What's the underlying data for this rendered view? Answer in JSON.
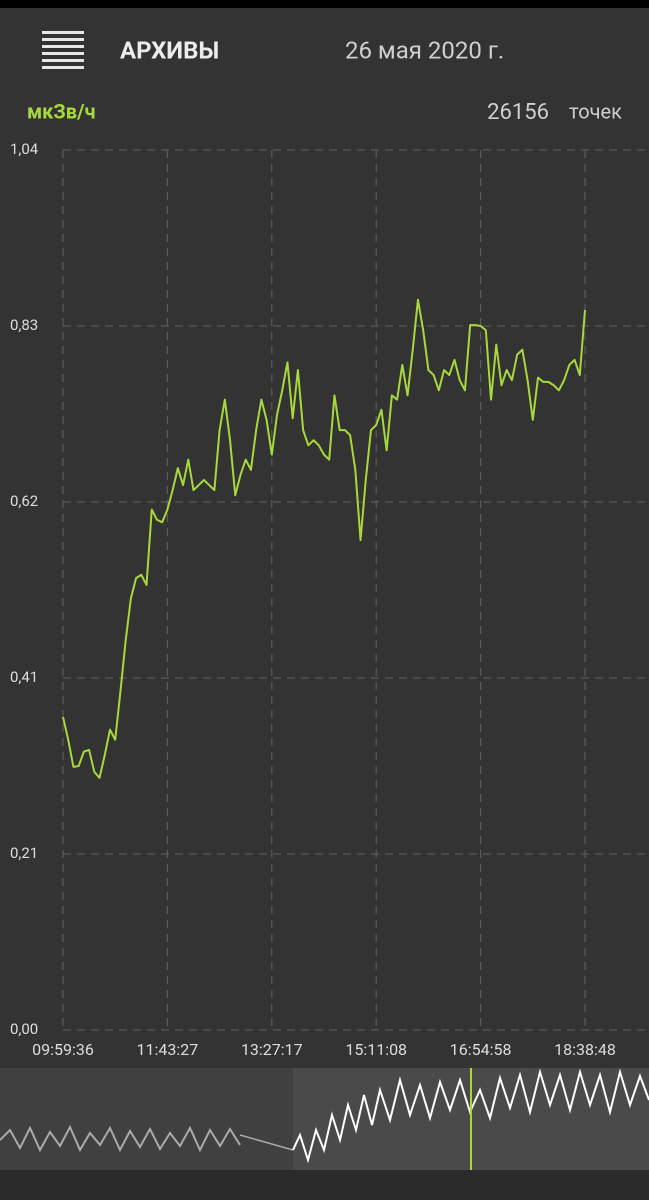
{
  "header": {
    "title": "АРХИВЫ",
    "date": "26 мая 2020 г."
  },
  "chart_data": {
    "type": "line",
    "y_unit": "мкЗв/ч",
    "point_count": 26156,
    "point_count_label": "точек",
    "color": "#a8d83c",
    "grid": true,
    "ylim": [
      0,
      1.04
    ],
    "yticks": [
      {
        "value": 0,
        "label": "0,00"
      },
      {
        "value": 0.208,
        "label": "0,21"
      },
      {
        "value": 0.416,
        "label": "0,41"
      },
      {
        "value": 0.624,
        "label": "0,62"
      },
      {
        "value": 0.832,
        "label": "0,83"
      },
      {
        "value": 1.04,
        "label": "1,04"
      }
    ],
    "categories": [
      "09:59:36",
      null,
      null,
      null,
      null,
      null,
      null,
      null,
      null,
      null,
      null,
      null,
      null,
      null,
      null,
      null,
      null,
      null,
      null,
      null,
      "11:43:27",
      null,
      null,
      null,
      null,
      null,
      null,
      null,
      null,
      null,
      null,
      null,
      null,
      null,
      null,
      null,
      null,
      null,
      null,
      null,
      "13:27:17",
      null,
      null,
      null,
      null,
      null,
      null,
      null,
      null,
      null,
      null,
      null,
      null,
      null,
      null,
      null,
      null,
      null,
      null,
      null,
      "15:11:08",
      null,
      null,
      null,
      null,
      null,
      null,
      null,
      null,
      null,
      null,
      null,
      null,
      null,
      null,
      null,
      null,
      null,
      null,
      null,
      "16:54:58",
      null,
      null,
      null,
      null,
      null,
      null,
      null,
      null,
      null,
      null,
      null,
      null,
      null,
      null,
      null,
      null,
      null,
      null,
      null,
      "18:38:48"
    ],
    "values": [
      0.37,
      0.343,
      0.311,
      0.312,
      0.329,
      0.331,
      0.305,
      0.298,
      0.325,
      0.355,
      0.343,
      0.4,
      0.46,
      0.51,
      0.534,
      0.538,
      0.526,
      0.615,
      0.603,
      0.6,
      0.615,
      0.638,
      0.664,
      0.644,
      0.674,
      0.638,
      0.644,
      0.65,
      0.644,
      0.638,
      0.709,
      0.745,
      0.697,
      0.632,
      0.656,
      0.674,
      0.662,
      0.709,
      0.745,
      0.721,
      0.68,
      0.727,
      0.756,
      0.789,
      0.723,
      0.78,
      0.709,
      0.691,
      0.697,
      0.691,
      0.68,
      0.674,
      0.75,
      0.709,
      0.709,
      0.703,
      0.662,
      0.579,
      0.65,
      0.709,
      0.715,
      0.733,
      0.685,
      0.75,
      0.745,
      0.786,
      0.75,
      0.804,
      0.863,
      0.827,
      0.78,
      0.774,
      0.756,
      0.78,
      0.774,
      0.792,
      0.768,
      0.756,
      0.833,
      0.833,
      0.832,
      0.827,
      0.745,
      0.81,
      0.762,
      0.78,
      0.768,
      0.798,
      0.804,
      0.768,
      0.721,
      0.771,
      0.766,
      0.766,
      0.762,
      0.756,
      0.768,
      0.786,
      0.792,
      0.774,
      0.851
    ]
  }
}
